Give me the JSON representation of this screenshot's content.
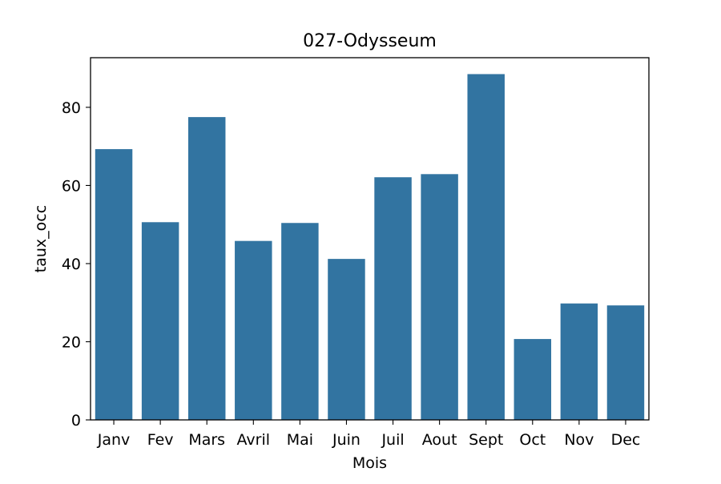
{
  "chart_data": {
    "type": "bar",
    "title": "027-Odysseum",
    "xlabel": "Mois",
    "ylabel": "taux_occ",
    "categories": [
      "Janv",
      "Fev",
      "Mars",
      "Avril",
      "Mai",
      "Juin",
      "Juil",
      "Aout",
      "Sept",
      "Oct",
      "Nov",
      "Dec"
    ],
    "values": [
      69.3,
      50.6,
      77.5,
      45.8,
      50.4,
      41.2,
      62.1,
      62.9,
      88.5,
      20.7,
      29.8,
      29.3
    ],
    "ylim": [
      0,
      92.7
    ],
    "yticks": [
      0,
      20,
      40,
      60,
      80
    ],
    "grid": false,
    "bar_color": "#3274a1"
  }
}
